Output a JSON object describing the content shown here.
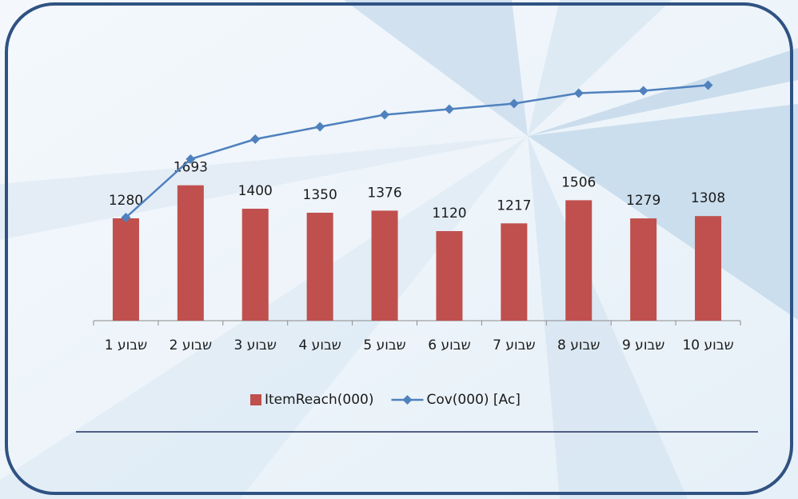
{
  "chart_data": {
    "type": "bar",
    "categories": [
      "שבוע 1",
      "שבוע 2",
      "שבוע 3",
      "שבוע 4",
      "שבוע 5",
      "שבוע 6",
      "שבוע 7",
      "שבוע 8",
      "שבוע 9",
      "שבוע 10"
    ],
    "series": [
      {
        "name": "ItemReach(000)",
        "color": "#c0504d",
        "type": "bar",
        "values": [
          1280,
          1693,
          1400,
          1350,
          1376,
          1120,
          1217,
          1506,
          1279,
          1308
        ]
      },
      {
        "name": "Cov(000) [Ac]",
        "color": "#4f81bd",
        "type": "line",
        "values": [
          1290,
          2020,
          2270,
          2425,
          2575,
          2645,
          2715,
          2845,
          2875,
          2945
        ]
      }
    ],
    "ylim": [
      0,
      3410
    ],
    "legend": "bottom"
  }
}
